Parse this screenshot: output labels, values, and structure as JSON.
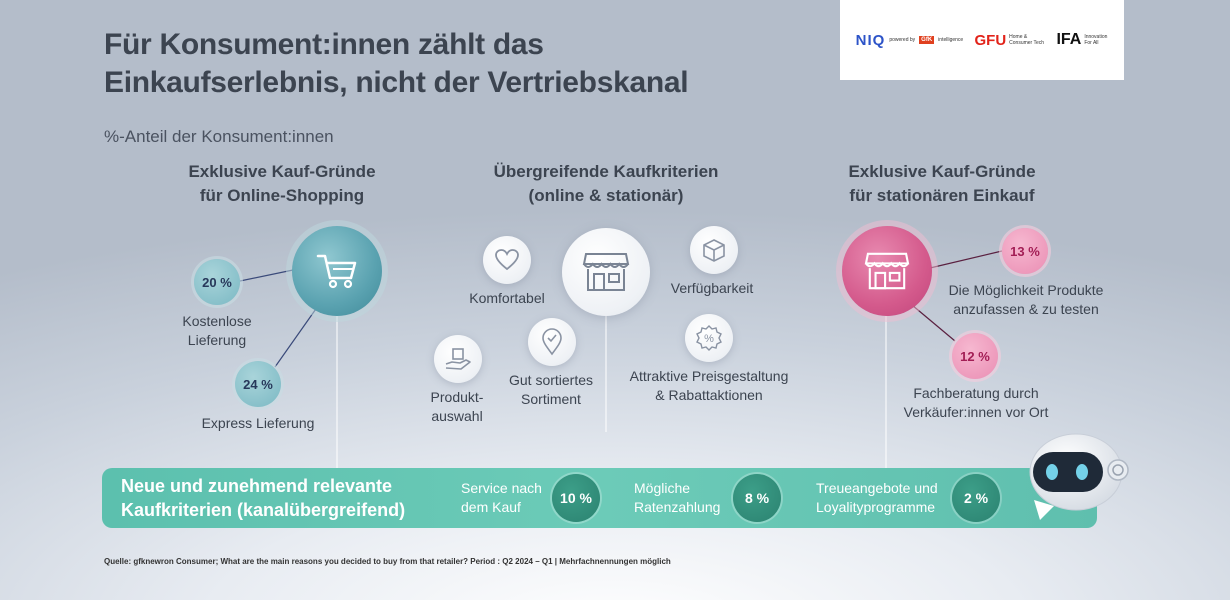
{
  "title": {
    "line1": "Für Konsument:innen zählt das",
    "line2": "Einkaufserlebnis, nicht der Vertriebskanal"
  },
  "subtitle": "%-Anteil der Konsument:innen",
  "logos": {
    "niq": "NIQ",
    "niq_powered": "powered by",
    "gfk": "GfK",
    "niq_intelligence": "intelligence",
    "gfu": "GFU",
    "gfu_sub": "Home & Consumer Tech",
    "ifa": "IFA",
    "ifa_sub": "Innovation For All"
  },
  "online": {
    "heading1": "Exklusive Kauf-Gründe",
    "heading2": "für Online-Shopping",
    "icon": "shopping-cart-icon",
    "items": [
      {
        "value": "20 %",
        "label1": "Kostenlose",
        "label2": "Lieferung"
      },
      {
        "value": "24 %",
        "label1": "Express Lieferung",
        "label2": ""
      }
    ]
  },
  "common": {
    "heading1": "Übergreifende Kaufkriterien",
    "heading2": "(online & stationär)",
    "center_icon": "storefront-icon",
    "items": [
      {
        "icon": "heart-icon",
        "label1": "Komfortabel",
        "label2": ""
      },
      {
        "icon": "box-icon",
        "label1": "Verfügbarkeit",
        "label2": ""
      },
      {
        "icon": "hand-box-icon",
        "label1": "Produkt-",
        "label2": "auswahl"
      },
      {
        "icon": "location-pin-icon",
        "label1": "Gut sortiertes",
        "label2": "Sortiment"
      },
      {
        "icon": "percent-badge-icon",
        "label1": "Attraktive Preisgestaltung",
        "label2": "& Rabattaktionen"
      }
    ]
  },
  "store": {
    "heading1": "Exklusive Kauf-Gründe",
    "heading2": "für stationären Einkauf",
    "icon": "storefront-icon",
    "items": [
      {
        "value": "13 %",
        "label1": "Die Möglichkeit Produkte",
        "label2": "anzufassen & zu testen"
      },
      {
        "value": "12 %",
        "label1": "Fachberatung durch",
        "label2": "Verkäufer:innen vor Ort"
      }
    ]
  },
  "banner": {
    "title1": "Neue und zunehmend relevante",
    "title2": "Kaufkriterien (kanalübergreifend)",
    "items": [
      {
        "label1": "Service nach",
        "label2": "dem Kauf",
        "value": "10 %"
      },
      {
        "label1": "Mögliche",
        "label2": "Ratenzahlung",
        "value": "8 %"
      },
      {
        "label1": "Treueangebote und",
        "label2": "Loyalityprogramme",
        "value": "2 %"
      }
    ]
  },
  "source": "Quelle: gfknewron Consumer; What are the main reasons you decided to buy from that retailer? Period : Q2 2024 – Q1 | Mehrfachnennungen möglich",
  "colors": {
    "teal": "#5aa2b0",
    "pink": "#d45a8c",
    "banner": "#5cc0ae",
    "banner_dark": "#2b8270",
    "text": "#3c4450"
  }
}
